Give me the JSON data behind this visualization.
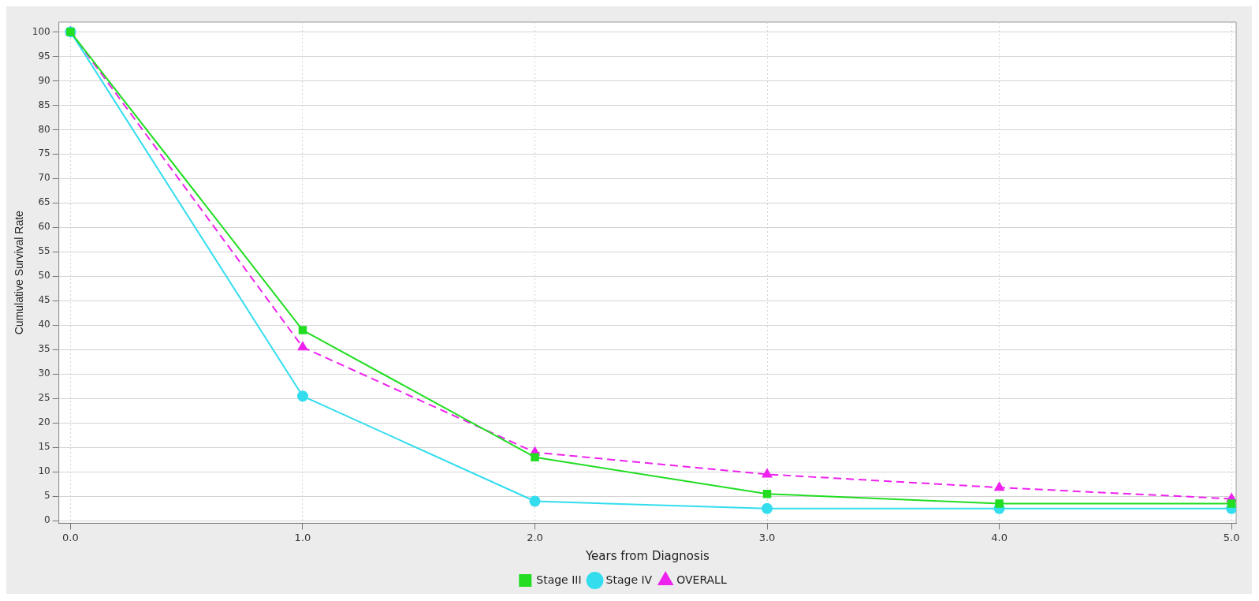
{
  "chart_data": {
    "type": "line",
    "xlabel": "Years from Diagnosis",
    "ylabel": "Cumulative Survival Rate",
    "x": [
      0,
      1,
      2,
      3,
      4,
      5
    ],
    "series": [
      {
        "name": "Stage III",
        "color": "#22dd22",
        "values": [
          100,
          39,
          13,
          5.5,
          3.5,
          3.5
        ],
        "marker": "square",
        "line_style": "solid"
      },
      {
        "name": "Stage IV",
        "color": "#33ddee",
        "values": [
          100,
          25.5,
          4,
          2.5,
          2.5,
          2.5
        ],
        "marker": "circle",
        "line_style": "solid"
      },
      {
        "name": "OVERALL",
        "color": "#ee22ee",
        "values": [
          100,
          35.5,
          14,
          9.5,
          6.8,
          4.5
        ],
        "marker": "triangle",
        "line_style": "dashed"
      }
    ],
    "xlim": [
      -0.05,
      5.02
    ],
    "xticks": [
      {
        "value": 0,
        "label": "0.0"
      },
      {
        "value": 1,
        "label": "1.0"
      },
      {
        "value": 2,
        "label": "2.0"
      },
      {
        "value": 3,
        "label": "3.0"
      },
      {
        "value": 4,
        "label": "4.0"
      },
      {
        "value": 5,
        "label": "5.0"
      }
    ],
    "ylim": [
      -0.5,
      102
    ],
    "yticks": [
      0,
      5,
      10,
      15,
      20,
      25,
      30,
      35,
      40,
      45,
      50,
      55,
      60,
      65,
      70,
      75,
      80,
      85,
      90,
      95,
      100
    ],
    "grid": true,
    "legend": "bottom"
  }
}
